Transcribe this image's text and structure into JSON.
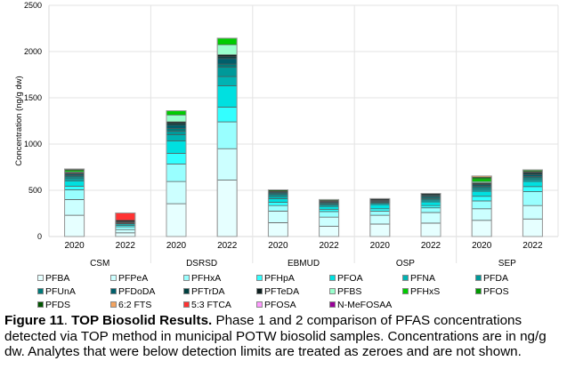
{
  "chart_data": {
    "type": "bar",
    "stacked": true,
    "title": "",
    "xlabel": "",
    "ylabel": "Concentration (ng/g dw)",
    "ylim": [
      0,
      2500
    ],
    "yticks": [
      "0",
      "500",
      "1000",
      "1500",
      "2000",
      "2500"
    ],
    "grid": true,
    "legend_position": "bottom",
    "groups": [
      "CSM",
      "DSRSD",
      "EBMUD",
      "OSP",
      "SEP"
    ],
    "categories": [
      "2020",
      "2022",
      "2020",
      "2022",
      "2020",
      "2022",
      "2020",
      "2022",
      "2020",
      "2022"
    ],
    "series": [
      {
        "name": "PFBA",
        "color": "#e6ffff",
        "values": [
          230,
          40,
          355,
          610,
          150,
          110,
          135,
          145,
          175,
          190
        ]
      },
      {
        "name": "PFPeA",
        "color": "#ccffff",
        "values": [
          170,
          35,
          240,
          340,
          125,
          100,
          95,
          115,
          125,
          145
        ]
      },
      {
        "name": "PFHxA",
        "color": "#99ffff",
        "values": [
          105,
          30,
          190,
          290,
          60,
          60,
          45,
          50,
          85,
          150
        ]
      },
      {
        "name": "PFHpA",
        "color": "#33ffff",
        "values": [
          40,
          15,
          115,
          160,
          35,
          25,
          25,
          25,
          50,
          55
        ]
      },
      {
        "name": "PFOA",
        "color": "#00e0e0",
        "values": [
          55,
          15,
          135,
          230,
          40,
          30,
          45,
          40,
          55,
          55
        ]
      },
      {
        "name": "PFNA",
        "color": "#00b3b3",
        "values": [
          25,
          5,
          65,
          100,
          25,
          15,
          15,
          20,
          20,
          20
        ]
      },
      {
        "name": "PFDA",
        "color": "#009999",
        "values": [
          20,
          5,
          40,
          100,
          20,
          15,
          10,
          15,
          20,
          20
        ]
      },
      {
        "name": "PFUnA",
        "color": "#007a7a",
        "values": [
          15,
          5,
          30,
          35,
          15,
          10,
          10,
          15,
          15,
          15
        ]
      },
      {
        "name": "PFDoDA",
        "color": "#005f6b",
        "values": [
          15,
          5,
          35,
          60,
          10,
          10,
          10,
          15,
          15,
          20
        ]
      },
      {
        "name": "PFTrDA",
        "color": "#004040",
        "values": [
          8,
          5,
          20,
          20,
          5,
          5,
          5,
          10,
          10,
          15
        ]
      },
      {
        "name": "PFTeDA",
        "color": "#0d1f1f",
        "values": [
          7,
          15,
          15,
          20,
          5,
          5,
          15,
          15,
          10,
          10
        ]
      },
      {
        "name": "PFBS",
        "color": "#99ffcc",
        "values": [
          10,
          0,
          75,
          110,
          0,
          5,
          0,
          0,
          15,
          5
        ]
      },
      {
        "name": "PFHxS",
        "color": "#00cc00",
        "values": [
          15,
          0,
          45,
          70,
          0,
          10,
          0,
          0,
          30,
          10
        ]
      },
      {
        "name": "PFOS",
        "color": "#009900",
        "values": [
          10,
          0,
          0,
          0,
          0,
          0,
          0,
          0,
          15,
          10
        ]
      },
      {
        "name": "PFDS",
        "color": "#005500",
        "values": [
          5,
          0,
          0,
          0,
          15,
          0,
          0,
          0,
          0,
          0
        ]
      },
      {
        "name": "6:2 FTS",
        "color": "#f4a460",
        "values": [
          0,
          0,
          0,
          0,
          0,
          0,
          0,
          0,
          15,
          0
        ]
      },
      {
        "name": "5:3 FTCA",
        "color": "#ff3333",
        "values": [
          0,
          80,
          0,
          0,
          0,
          0,
          0,
          0,
          0,
          0
        ]
      },
      {
        "name": "PFOSA",
        "color": "#ff99ff",
        "values": [
          0,
          0,
          0,
          0,
          0,
          0,
          0,
          0,
          0,
          0
        ]
      },
      {
        "name": "N-MeFOSAA",
        "color": "#990099",
        "values": [
          0,
          0,
          0,
          0,
          0,
          0,
          0,
          0,
          0,
          0
        ]
      }
    ]
  },
  "caption": {
    "label": "Figure 11",
    "sep": ". ",
    "title": "TOP Biosolid Results.",
    "text": " Phase 1 and 2 comparison of PFAS concentrations detected via TOP method in municipal POTW biosolid samples. Concentrations are in ng/g dw. Analytes that were below detection limits are treated as zeroes and are not shown."
  }
}
